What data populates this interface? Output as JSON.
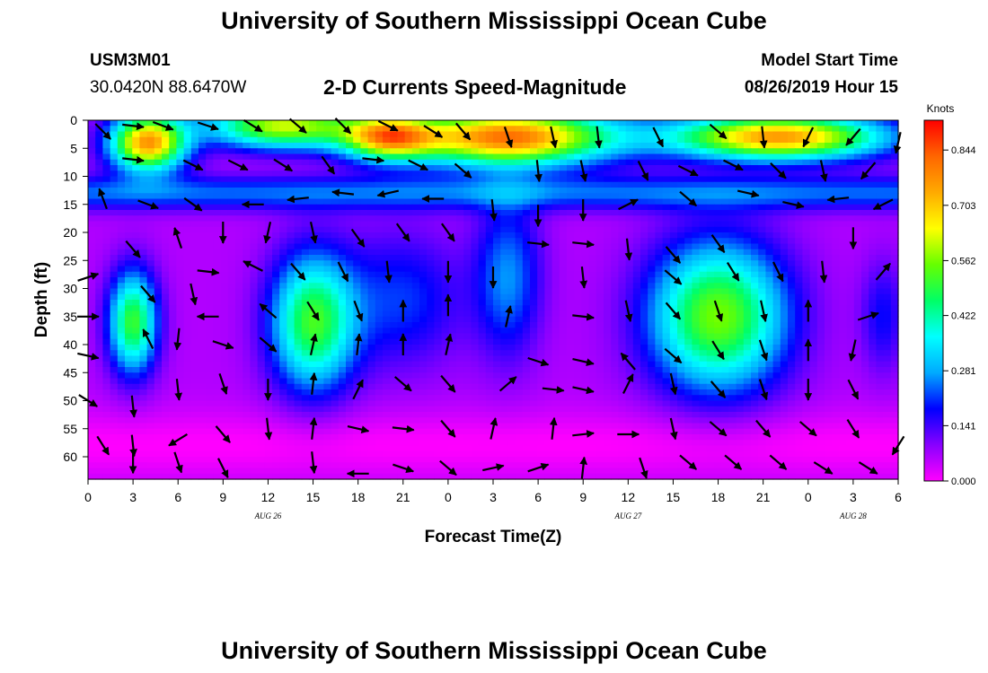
{
  "header": {
    "title": "University of Southern Mississippi Ocean Cube",
    "station_id": "USM3M01",
    "station_coords": "30.0420N 88.6470W",
    "subtitle": "2-D Currents Speed-Magnitude",
    "model_label": "Model Start Time",
    "model_time": "08/26/2019 Hour 15"
  },
  "footer": {
    "title": "University of Southern Mississippi Ocean Cube"
  },
  "chart_data": {
    "type": "heatmap",
    "title": "2-D Currents Speed-Magnitude",
    "xlabel": "Forecast Time(Z)",
    "ylabel": "Depth (ft)",
    "x_ticks": [
      "0",
      "3",
      "6",
      "9",
      "12",
      "15",
      "18",
      "21",
      "0",
      "3",
      "6",
      "9",
      "12",
      "15",
      "18",
      "21",
      "0",
      "3",
      "6"
    ],
    "x_range_hours": [
      0,
      54
    ],
    "date_labels": [
      {
        "label": "AUG 26",
        "hour": 12
      },
      {
        "label": "AUG 27",
        "hour": 36
      },
      {
        "label": "AUG 28",
        "hour": 51
      }
    ],
    "y_ticks": [
      0,
      5,
      10,
      15,
      20,
      25,
      30,
      35,
      40,
      45,
      50,
      55,
      60
    ],
    "ylim": [
      0,
      64
    ],
    "y_inverted": true,
    "colorbar": {
      "title": "Knots",
      "ticks": [
        "0.844",
        "0.703",
        "0.562",
        "0.422",
        "0.281",
        "0.141",
        "0.000"
      ],
      "range": [
        0,
        0.92
      ]
    },
    "colors": [
      "#ff00ff",
      "#8800ff",
      "#0000ff",
      "#00aaff",
      "#00ffff",
      "#00ff66",
      "#66ff00",
      "#ffff00",
      "#ffaa00",
      "#ff6600",
      "#ff0000"
    ],
    "speed_field_blobs": [
      {
        "hour": 4,
        "depth": 4,
        "sx": 2.5,
        "sy": 5,
        "amp": 0.7
      },
      {
        "hour": 13,
        "depth": 1,
        "sx": 5,
        "sy": 4,
        "amp": 0.55
      },
      {
        "hour": 20,
        "depth": 3,
        "sx": 3,
        "sy": 4,
        "amp": 0.55
      },
      {
        "hour": 28,
        "depth": 3,
        "sx": 7,
        "sy": 5,
        "amp": 0.75
      },
      {
        "hour": 46,
        "depth": 3,
        "sx": 7,
        "sy": 4,
        "amp": 0.7
      },
      {
        "hour": 3,
        "depth": 36,
        "sx": 1.6,
        "sy": 9,
        "amp": 0.45
      },
      {
        "hour": 15,
        "depth": 36,
        "sx": 2.8,
        "sy": 12,
        "amp": 0.45
      },
      {
        "hour": 21,
        "depth": 32,
        "sx": 4,
        "sy": 12,
        "amp": 0.15
      },
      {
        "hour": 28,
        "depth": 28,
        "sx": 2.2,
        "sy": 14,
        "amp": 0.2
      },
      {
        "hour": 42,
        "depth": 35,
        "sx": 4.5,
        "sy": 13,
        "amp": 0.5
      },
      {
        "hour": 53,
        "depth": 35,
        "sx": 1.5,
        "sy": 10,
        "amp": 0.12
      }
    ],
    "vectors": [
      {
        "hour": 1,
        "depth": 2,
        "dx": 0.6,
        "dy": 0.6
      },
      {
        "hour": 3,
        "depth": 1,
        "dx": 0.9,
        "dy": 0.1
      },
      {
        "hour": 5,
        "depth": 1,
        "dx": 0.8,
        "dy": 0.3
      },
      {
        "hour": 8,
        "depth": 1,
        "dx": 0.9,
        "dy": 0.3
      },
      {
        "hour": 11,
        "depth": 1,
        "dx": 0.8,
        "dy": 0.5
      },
      {
        "hour": 14,
        "depth": 1,
        "dx": 0.7,
        "dy": 0.6
      },
      {
        "hour": 17,
        "depth": 1,
        "dx": 0.6,
        "dy": 0.6
      },
      {
        "hour": 20,
        "depth": 1,
        "dx": 0.8,
        "dy": 0.4
      },
      {
        "hour": 23,
        "depth": 2,
        "dx": 0.8,
        "dy": 0.5
      },
      {
        "hour": 25,
        "depth": 2,
        "dx": 0.6,
        "dy": 0.7
      },
      {
        "hour": 28,
        "depth": 3,
        "dx": 0.3,
        "dy": 0.9
      },
      {
        "hour": 31,
        "depth": 3,
        "dx": 0.2,
        "dy": 0.9
      },
      {
        "hour": 34,
        "depth": 3,
        "dx": 0.1,
        "dy": 0.9
      },
      {
        "hour": 38,
        "depth": 3,
        "dx": 0.4,
        "dy": 0.8
      },
      {
        "hour": 42,
        "depth": 2,
        "dx": 0.7,
        "dy": 0.6
      },
      {
        "hour": 45,
        "depth": 3,
        "dx": 0.1,
        "dy": 0.9
      },
      {
        "hour": 48,
        "depth": 3,
        "dx": -0.4,
        "dy": 0.8
      },
      {
        "hour": 51,
        "depth": 3,
        "dx": -0.6,
        "dy": 0.7
      },
      {
        "hour": 54,
        "depth": 4,
        "dx": -0.2,
        "dy": 0.9
      },
      {
        "hour": 3,
        "depth": 7,
        "dx": 0.9,
        "dy": 0.1
      },
      {
        "hour": 7,
        "depth": 8,
        "dx": 0.8,
        "dy": 0.4
      },
      {
        "hour": 10,
        "depth": 8,
        "dx": 0.8,
        "dy": 0.4
      },
      {
        "hour": 13,
        "depth": 8,
        "dx": 0.8,
        "dy": 0.5
      },
      {
        "hour": 16,
        "depth": 8,
        "dx": 0.5,
        "dy": 0.7
      },
      {
        "hour": 19,
        "depth": 7,
        "dx": 0.9,
        "dy": 0.1
      },
      {
        "hour": 22,
        "depth": 8,
        "dx": 0.8,
        "dy": 0.4
      },
      {
        "hour": 25,
        "depth": 9,
        "dx": 0.7,
        "dy": 0.6
      },
      {
        "hour": 30,
        "depth": 9,
        "dx": 0.1,
        "dy": 0.9
      },
      {
        "hour": 33,
        "depth": 9,
        "dx": 0.2,
        "dy": 0.9
      },
      {
        "hour": 37,
        "depth": 9,
        "dx": 0.4,
        "dy": 0.8
      },
      {
        "hour": 40,
        "depth": 9,
        "dx": 0.8,
        "dy": 0.4
      },
      {
        "hour": 43,
        "depth": 8,
        "dx": 0.8,
        "dy": 0.4
      },
      {
        "hour": 46,
        "depth": 9,
        "dx": 0.6,
        "dy": 0.6
      },
      {
        "hour": 49,
        "depth": 9,
        "dx": 0.2,
        "dy": 0.9
      },
      {
        "hour": 52,
        "depth": 9,
        "dx": -0.6,
        "dy": 0.7
      },
      {
        "hour": 1,
        "depth": 14,
        "dx": -0.3,
        "dy": -0.8
      },
      {
        "hour": 4,
        "depth": 15,
        "dx": 0.8,
        "dy": 0.3
      },
      {
        "hour": 7,
        "depth": 15,
        "dx": 0.7,
        "dy": 0.5
      },
      {
        "hour": 11,
        "depth": 15,
        "dx": -0.9,
        "dy": 0.0
      },
      {
        "hour": 14,
        "depth": 14,
        "dx": -0.9,
        "dy": 0.1
      },
      {
        "hour": 17,
        "depth": 13,
        "dx": -0.9,
        "dy": -0.1
      },
      {
        "hour": 20,
        "depth": 13,
        "dx": -0.9,
        "dy": 0.2
      },
      {
        "hour": 23,
        "depth": 14,
        "dx": -0.9,
        "dy": 0.0
      },
      {
        "hour": 27,
        "depth": 16,
        "dx": 0.1,
        "dy": 0.9
      },
      {
        "hour": 30,
        "depth": 17,
        "dx": 0.0,
        "dy": 0.9
      },
      {
        "hour": 33,
        "depth": 16,
        "dx": 0.0,
        "dy": 0.9
      },
      {
        "hour": 36,
        "depth": 15,
        "dx": 0.8,
        "dy": -0.4
      },
      {
        "hour": 40,
        "depth": 14,
        "dx": 0.7,
        "dy": 0.6
      },
      {
        "hour": 44,
        "depth": 13,
        "dx": 0.9,
        "dy": 0.2
      },
      {
        "hour": 47,
        "depth": 15,
        "dx": 0.9,
        "dy": 0.2
      },
      {
        "hour": 50,
        "depth": 14,
        "dx": -0.9,
        "dy": 0.1
      },
      {
        "hour": 53,
        "depth": 15,
        "dx": -0.8,
        "dy": 0.4
      },
      {
        "hour": 3,
        "depth": 23,
        "dx": 0.6,
        "dy": 0.7
      },
      {
        "hour": 6,
        "depth": 21,
        "dx": -0.3,
        "dy": -0.9
      },
      {
        "hour": 9,
        "depth": 20,
        "dx": 0.0,
        "dy": 0.9
      },
      {
        "hour": 12,
        "depth": 20,
        "dx": -0.2,
        "dy": 0.9
      },
      {
        "hour": 15,
        "depth": 20,
        "dx": 0.2,
        "dy": 0.9
      },
      {
        "hour": 18,
        "depth": 21,
        "dx": 0.5,
        "dy": 0.7
      },
      {
        "hour": 21,
        "depth": 20,
        "dx": 0.5,
        "dy": 0.7
      },
      {
        "hour": 24,
        "depth": 20,
        "dx": 0.5,
        "dy": 0.7
      },
      {
        "hour": 30,
        "depth": 22,
        "dx": 0.9,
        "dy": 0.1
      },
      {
        "hour": 33,
        "depth": 22,
        "dx": 0.9,
        "dy": 0.1
      },
      {
        "hour": 36,
        "depth": 23,
        "dx": 0.1,
        "dy": 0.9
      },
      {
        "hour": 39,
        "depth": 24,
        "dx": 0.6,
        "dy": 0.7
      },
      {
        "hour": 42,
        "depth": 22,
        "dx": 0.5,
        "dy": 0.7
      },
      {
        "hour": 51,
        "depth": 21,
        "dx": 0.0,
        "dy": 0.9
      },
      {
        "hour": 0,
        "depth": 28,
        "dx": 0.9,
        "dy": -0.3
      },
      {
        "hour": 8,
        "depth": 27,
        "dx": 0.9,
        "dy": 0.1
      },
      {
        "hour": 11,
        "depth": 26,
        "dx": -0.8,
        "dy": -0.4
      },
      {
        "hour": 14,
        "depth": 27,
        "dx": 0.6,
        "dy": 0.7
      },
      {
        "hour": 17,
        "depth": 27,
        "dx": 0.4,
        "dy": 0.8
      },
      {
        "hour": 20,
        "depth": 27,
        "dx": 0.1,
        "dy": 0.9
      },
      {
        "hour": 24,
        "depth": 27,
        "dx": 0.0,
        "dy": 0.9
      },
      {
        "hour": 27,
        "depth": 28,
        "dx": 0.0,
        "dy": 0.9
      },
      {
        "hour": 33,
        "depth": 28,
        "dx": 0.1,
        "dy": 0.9
      },
      {
        "hour": 39,
        "depth": 28,
        "dx": 0.7,
        "dy": 0.6
      },
      {
        "hour": 43,
        "depth": 27,
        "dx": 0.5,
        "dy": 0.8
      },
      {
        "hour": 46,
        "depth": 27,
        "dx": 0.4,
        "dy": 0.8
      },
      {
        "hour": 49,
        "depth": 27,
        "dx": 0.1,
        "dy": 0.9
      },
      {
        "hour": 53,
        "depth": 27,
        "dx": 0.6,
        "dy": -0.7
      },
      {
        "hour": 0,
        "depth": 35,
        "dx": 0.9,
        "dy": 0.0
      },
      {
        "hour": 4,
        "depth": 31,
        "dx": 0.6,
        "dy": 0.7
      },
      {
        "hour": 7,
        "depth": 31,
        "dx": 0.2,
        "dy": 0.9
      },
      {
        "hour": 8,
        "depth": 35,
        "dx": -0.9,
        "dy": 0.0
      },
      {
        "hour": 12,
        "depth": 34,
        "dx": -0.7,
        "dy": -0.6
      },
      {
        "hour": 15,
        "depth": 34,
        "dx": 0.5,
        "dy": 0.8
      },
      {
        "hour": 18,
        "depth": 34,
        "dx": 0.3,
        "dy": 0.8
      },
      {
        "hour": 21,
        "depth": 34,
        "dx": 0.0,
        "dy": -0.9
      },
      {
        "hour": 24,
        "depth": 33,
        "dx": 0.0,
        "dy": -0.9
      },
      {
        "hour": 28,
        "depth": 35,
        "dx": 0.2,
        "dy": -0.9
      },
      {
        "hour": 33,
        "depth": 35,
        "dx": 0.9,
        "dy": 0.1
      },
      {
        "hour": 36,
        "depth": 34,
        "dx": 0.2,
        "dy": 0.9
      },
      {
        "hour": 39,
        "depth": 34,
        "dx": 0.6,
        "dy": 0.7
      },
      {
        "hour": 42,
        "depth": 34,
        "dx": 0.3,
        "dy": 0.9
      },
      {
        "hour": 45,
        "depth": 34,
        "dx": 0.2,
        "dy": 0.9
      },
      {
        "hour": 48,
        "depth": 34,
        "dx": 0.0,
        "dy": -0.9
      },
      {
        "hour": 52,
        "depth": 35,
        "dx": 0.9,
        "dy": -0.3
      },
      {
        "hour": 0,
        "depth": 42,
        "dx": 0.9,
        "dy": 0.2
      },
      {
        "hour": 4,
        "depth": 39,
        "dx": -0.4,
        "dy": -0.8
      },
      {
        "hour": 6,
        "depth": 39,
        "dx": -0.1,
        "dy": 0.9
      },
      {
        "hour": 9,
        "depth": 40,
        "dx": 0.9,
        "dy": 0.3
      },
      {
        "hour": 12,
        "depth": 40,
        "dx": 0.7,
        "dy": 0.6
      },
      {
        "hour": 15,
        "depth": 40,
        "dx": 0.2,
        "dy": -0.9
      },
      {
        "hour": 18,
        "depth": 40,
        "dx": 0.1,
        "dy": -0.9
      },
      {
        "hour": 21,
        "depth": 40,
        "dx": 0.0,
        "dy": -0.9
      },
      {
        "hour": 24,
        "depth": 40,
        "dx": 0.2,
        "dy": -0.9
      },
      {
        "hour": 30,
        "depth": 43,
        "dx": 0.9,
        "dy": 0.3
      },
      {
        "hour": 33,
        "depth": 43,
        "dx": 0.9,
        "dy": 0.2
      },
      {
        "hour": 36,
        "depth": 43,
        "dx": -0.6,
        "dy": -0.7
      },
      {
        "hour": 39,
        "depth": 42,
        "dx": 0.7,
        "dy": 0.6
      },
      {
        "hour": 42,
        "depth": 41,
        "dx": 0.5,
        "dy": 0.8
      },
      {
        "hour": 45,
        "depth": 41,
        "dx": 0.3,
        "dy": 0.9
      },
      {
        "hour": 48,
        "depth": 41,
        "dx": 0.0,
        "dy": -0.9
      },
      {
        "hour": 51,
        "depth": 41,
        "dx": -0.2,
        "dy": 0.9
      },
      {
        "hour": 0,
        "depth": 50,
        "dx": 0.8,
        "dy": 0.5
      },
      {
        "hour": 3,
        "depth": 51,
        "dx": 0.1,
        "dy": 0.9
      },
      {
        "hour": 6,
        "depth": 48,
        "dx": 0.1,
        "dy": 0.9
      },
      {
        "hour": 9,
        "depth": 47,
        "dx": 0.3,
        "dy": 0.9
      },
      {
        "hour": 12,
        "depth": 48,
        "dx": 0.0,
        "dy": 0.9
      },
      {
        "hour": 15,
        "depth": 47,
        "dx": 0.1,
        "dy": -0.9
      },
      {
        "hour": 18,
        "depth": 48,
        "dx": 0.4,
        "dy": -0.8
      },
      {
        "hour": 21,
        "depth": 47,
        "dx": 0.7,
        "dy": 0.6
      },
      {
        "hour": 24,
        "depth": 47,
        "dx": 0.6,
        "dy": 0.7
      },
      {
        "hour": 28,
        "depth": 47,
        "dx": 0.7,
        "dy": -0.6
      },
      {
        "hour": 31,
        "depth": 48,
        "dx": 0.9,
        "dy": 0.1
      },
      {
        "hour": 33,
        "depth": 48,
        "dx": 0.9,
        "dy": 0.2
      },
      {
        "hour": 36,
        "depth": 47,
        "dx": 0.4,
        "dy": -0.8
      },
      {
        "hour": 39,
        "depth": 47,
        "dx": 0.2,
        "dy": 0.9
      },
      {
        "hour": 42,
        "depth": 48,
        "dx": 0.6,
        "dy": 0.7
      },
      {
        "hour": 45,
        "depth": 48,
        "dx": 0.3,
        "dy": 0.9
      },
      {
        "hour": 48,
        "depth": 48,
        "dx": 0.0,
        "dy": 0.9
      },
      {
        "hour": 51,
        "depth": 48,
        "dx": 0.4,
        "dy": 0.8
      },
      {
        "hour": 1,
        "depth": 58,
        "dx": 0.5,
        "dy": 0.8
      },
      {
        "hour": 3,
        "depth": 58,
        "dx": 0.1,
        "dy": 0.9
      },
      {
        "hour": 6,
        "depth": 57,
        "dx": -0.8,
        "dy": 0.5
      },
      {
        "hour": 9,
        "depth": 56,
        "dx": 0.6,
        "dy": 0.7
      },
      {
        "hour": 12,
        "depth": 55,
        "dx": 0.1,
        "dy": 0.9
      },
      {
        "hour": 15,
        "depth": 55,
        "dx": 0.1,
        "dy": -0.9
      },
      {
        "hour": 18,
        "depth": 55,
        "dx": 0.9,
        "dy": 0.2
      },
      {
        "hour": 21,
        "depth": 55,
        "dx": 0.9,
        "dy": 0.1
      },
      {
        "hour": 24,
        "depth": 55,
        "dx": 0.6,
        "dy": 0.7
      },
      {
        "hour": 27,
        "depth": 55,
        "dx": 0.2,
        "dy": -0.9
      },
      {
        "hour": 31,
        "depth": 55,
        "dx": 0.1,
        "dy": -0.9
      },
      {
        "hour": 33,
        "depth": 56,
        "dx": 0.9,
        "dy": -0.1
      },
      {
        "hour": 36,
        "depth": 56,
        "dx": 0.9,
        "dy": 0.0
      },
      {
        "hour": 39,
        "depth": 55,
        "dx": 0.2,
        "dy": 0.9
      },
      {
        "hour": 42,
        "depth": 55,
        "dx": 0.7,
        "dy": 0.6
      },
      {
        "hour": 45,
        "depth": 55,
        "dx": 0.6,
        "dy": 0.7
      },
      {
        "hour": 48,
        "depth": 55,
        "dx": 0.7,
        "dy": 0.6
      },
      {
        "hour": 51,
        "depth": 55,
        "dx": 0.5,
        "dy": 0.8
      },
      {
        "hour": 54,
        "depth": 58,
        "dx": -0.5,
        "dy": 0.8
      },
      {
        "hour": 3,
        "depth": 61,
        "dx": 0.0,
        "dy": 0.9
      },
      {
        "hour": 6,
        "depth": 61,
        "dx": 0.3,
        "dy": 0.9
      },
      {
        "hour": 9,
        "depth": 62,
        "dx": 0.4,
        "dy": 0.8
      },
      {
        "hour": 15,
        "depth": 61,
        "dx": 0.1,
        "dy": 0.9
      },
      {
        "hour": 18,
        "depth": 63,
        "dx": -0.9,
        "dy": 0.0
      },
      {
        "hour": 21,
        "depth": 62,
        "dx": 0.9,
        "dy": 0.3
      },
      {
        "hour": 24,
        "depth": 62,
        "dx": 0.7,
        "dy": 0.6
      },
      {
        "hour": 27,
        "depth": 62,
        "dx": 0.9,
        "dy": -0.2
      },
      {
        "hour": 30,
        "depth": 62,
        "dx": 0.9,
        "dy": -0.3
      },
      {
        "hour": 33,
        "depth": 62,
        "dx": 0.1,
        "dy": -0.9
      },
      {
        "hour": 37,
        "depth": 62,
        "dx": 0.3,
        "dy": 0.9
      },
      {
        "hour": 40,
        "depth": 61,
        "dx": 0.7,
        "dy": 0.6
      },
      {
        "hour": 43,
        "depth": 61,
        "dx": 0.7,
        "dy": 0.6
      },
      {
        "hour": 46,
        "depth": 61,
        "dx": 0.7,
        "dy": 0.6
      },
      {
        "hour": 49,
        "depth": 62,
        "dx": 0.8,
        "dy": 0.5
      },
      {
        "hour": 52,
        "depth": 62,
        "dx": 0.8,
        "dy": 0.5
      }
    ]
  }
}
